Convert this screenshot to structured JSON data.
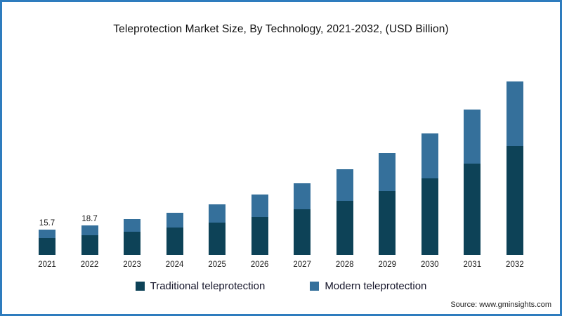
{
  "page": {
    "border_color": "#2e7cbe",
    "background": "#ffffff"
  },
  "chart_data": {
    "type": "bar",
    "stacked": true,
    "title": "Teleprotection Market Size, By Technology, 2021-2032, (USD Billion)",
    "categories": [
      "2021",
      "2022",
      "2023",
      "2024",
      "2025",
      "2026",
      "2027",
      "2028",
      "2029",
      "2030",
      "2031",
      "2032"
    ],
    "series": [
      {
        "name": "Traditional teleprotection",
        "color": "#0d4257",
        "values": [
          10.5,
          12.4,
          14.6,
          17.2,
          20.3,
          24.0,
          28.5,
          33.9,
          40.3,
          48.0,
          57.2,
          68.2
        ]
      },
      {
        "name": "Modern teleprotection",
        "color": "#35709b",
        "values": [
          5.2,
          6.3,
          7.7,
          9.4,
          11.4,
          13.8,
          16.6,
          19.9,
          23.8,
          28.5,
          34.0,
          40.6
        ]
      }
    ],
    "bar_labels": [
      "15.7",
      "18.7",
      "",
      "",
      "",
      "",
      "",
      "",
      "",
      "",
      "",
      ""
    ],
    "xlabel": "",
    "ylabel": "",
    "ylim": [
      0,
      120
    ],
    "grid": false,
    "legend_position": "bottom"
  },
  "source": {
    "text": "Source: www.gminsights.com"
  }
}
